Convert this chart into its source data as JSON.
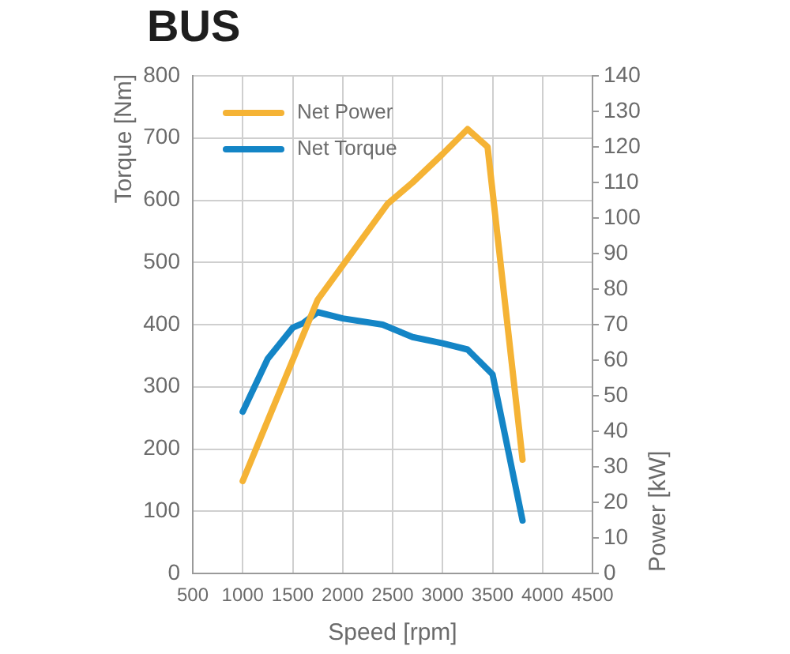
{
  "chart_data": {
    "type": "line",
    "title": "BUS",
    "xlabel": "Speed [rpm]",
    "ylabel": "Torque [Nm]",
    "y2label": "Power [kW]",
    "xlim": [
      500,
      4500
    ],
    "xticks": [
      500,
      1000,
      1500,
      2000,
      2500,
      3000,
      3500,
      4000,
      4500
    ],
    "ylim": [
      0,
      800
    ],
    "yticks": [
      0,
      100,
      200,
      300,
      400,
      500,
      600,
      700,
      800
    ],
    "y2lim": [
      0,
      140
    ],
    "y2ticks": [
      0,
      10,
      20,
      30,
      40,
      50,
      60,
      70,
      80,
      90,
      100,
      110,
      120,
      130,
      140
    ],
    "grid": true,
    "legend": "top left",
    "marker": "none",
    "line_style": "solid",
    "series": [
      {
        "name": "Net Power",
        "color": "#f5b335",
        "axis": "y2",
        "x": [
          1000,
          1750,
          2450,
          2700,
          3000,
          3250,
          3450,
          3800
        ],
        "values": [
          26,
          77,
          104,
          110,
          118,
          125,
          120,
          32
        ]
      },
      {
        "name": "Net Torque",
        "color": "#1485c6",
        "x": [
          1000,
          1250,
          1500,
          1600,
          1750,
          2000,
          2400,
          2700,
          3000,
          3250,
          3500,
          3800
        ],
        "values": [
          260,
          345,
          395,
          402,
          420,
          410,
          400,
          380,
          370,
          360,
          320,
          85
        ]
      }
    ]
  }
}
